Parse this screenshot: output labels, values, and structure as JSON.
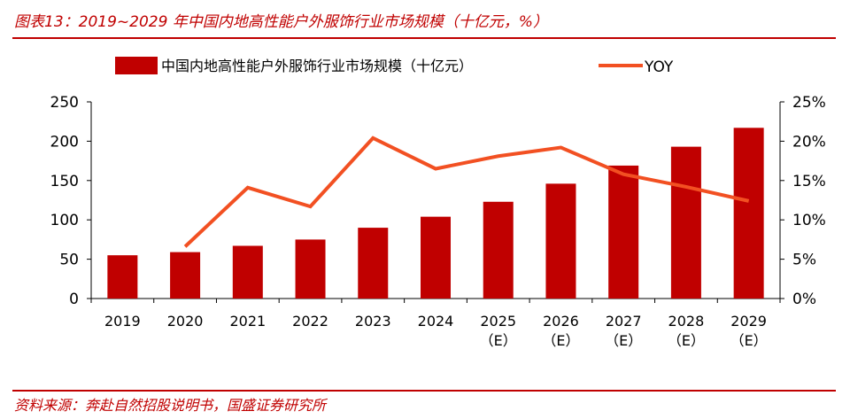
{
  "header": {
    "title": "图表13：2019~2029 年中国内地高性能户外服饰行业市场规模（十亿元，%）"
  },
  "footer": {
    "source": "资料来源：奔赴自然招股说明书，国盛证券研究所"
  },
  "colors": {
    "accent": "#c00000",
    "bar": "#c00000",
    "line": "#f25022"
  },
  "chart_data": {
    "type": "bar",
    "categories": [
      "2019",
      "2020",
      "2021",
      "2022",
      "2023",
      "2024",
      "2025（E）",
      "2026（E）",
      "2027（E）",
      "2028（E）",
      "2029（E）"
    ],
    "category_lines": [
      [
        "2019"
      ],
      [
        "2020"
      ],
      [
        "2021"
      ],
      [
        "2022"
      ],
      [
        "2023"
      ],
      [
        "2024"
      ],
      [
        "2025",
        "（E）"
      ],
      [
        "2026",
        "（E）"
      ],
      [
        "2027",
        "（E）"
      ],
      [
        "2028",
        "（E）"
      ],
      [
        "2029",
        "（E）"
      ]
    ],
    "series": [
      {
        "name": "中国内地高性能户外服饰行业市场规模（十亿元）",
        "type": "bar",
        "axis": "left",
        "values": [
          55,
          59,
          67,
          75,
          90,
          104,
          123,
          146,
          169,
          193,
          217
        ]
      },
      {
        "name": "YOY",
        "type": "line",
        "axis": "right",
        "values": [
          null,
          0.066,
          0.141,
          0.117,
          0.204,
          0.165,
          0.181,
          0.192,
          0.158,
          0.142,
          0.124
        ]
      }
    ],
    "y_left": {
      "ylim": [
        0,
        250
      ],
      "ticks": [
        0,
        50,
        100,
        150,
        200,
        250
      ]
    },
    "y_right": {
      "ylim": [
        0,
        0.25
      ],
      "ticks": [
        "0%",
        "5%",
        "10%",
        "15%",
        "20%",
        "25%"
      ]
    },
    "legend_position": "top",
    "grid": false
  }
}
